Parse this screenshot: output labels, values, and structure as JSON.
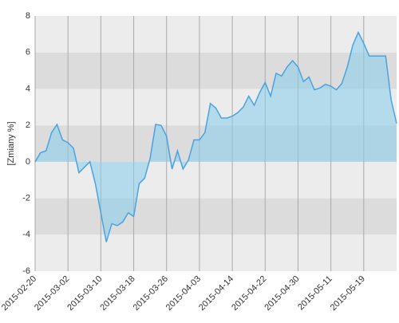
{
  "chart_data": {
    "type": "area",
    "y_label": "[Zmiany %]",
    "categories": [
      "2015-02-20",
      null,
      null,
      null,
      null,
      null,
      "2015-03-02",
      null,
      null,
      null,
      null,
      null,
      "2015-03-10",
      null,
      null,
      null,
      null,
      null,
      "2015-03-18",
      null,
      null,
      null,
      null,
      null,
      "2015-03-26",
      null,
      null,
      null,
      null,
      null,
      "2015-04-03",
      null,
      null,
      null,
      null,
      null,
      "2015-04-14",
      null,
      null,
      null,
      null,
      null,
      "2015-04-22",
      null,
      null,
      null,
      null,
      null,
      "2015-04-30",
      null,
      null,
      null,
      null,
      null,
      "2015-05-11",
      null,
      null,
      null,
      null,
      null,
      "2015-05-19",
      null,
      null,
      null,
      null,
      null,
      null
    ],
    "values": [
      0,
      0.5,
      0.6,
      1.6,
      2.05,
      1.2,
      1.05,
      0.75,
      -0.6,
      -0.3,
      0,
      -1.2,
      -2.8,
      -4.4,
      -3.4,
      -3.5,
      -3.3,
      -2.8,
      -3.0,
      -1.2,
      -0.9,
      0.2,
      2.05,
      2.0,
      1.4,
      -0.4,
      0.6,
      -0.4,
      0.1,
      1.2,
      1.2,
      1.6,
      3.2,
      2.95,
      2.4,
      2.4,
      2.5,
      2.7,
      3.0,
      3.6,
      3.1,
      3.8,
      4.35,
      3.6,
      4.85,
      4.7,
      5.2,
      5.55,
      5.2,
      4.4,
      4.65,
      3.95,
      4.05,
      4.25,
      4.15,
      3.95,
      4.3,
      5.2,
      6.4,
      7.1,
      6.5,
      5.8,
      5.8,
      5.8,
      5.8,
      3.4,
      2.1
    ],
    "color": "#4aa3df",
    "ylim": [
      -6,
      8
    ],
    "yticks": [
      -6,
      -4,
      -2,
      0,
      2,
      4,
      6,
      8
    ],
    "grid": true
  }
}
